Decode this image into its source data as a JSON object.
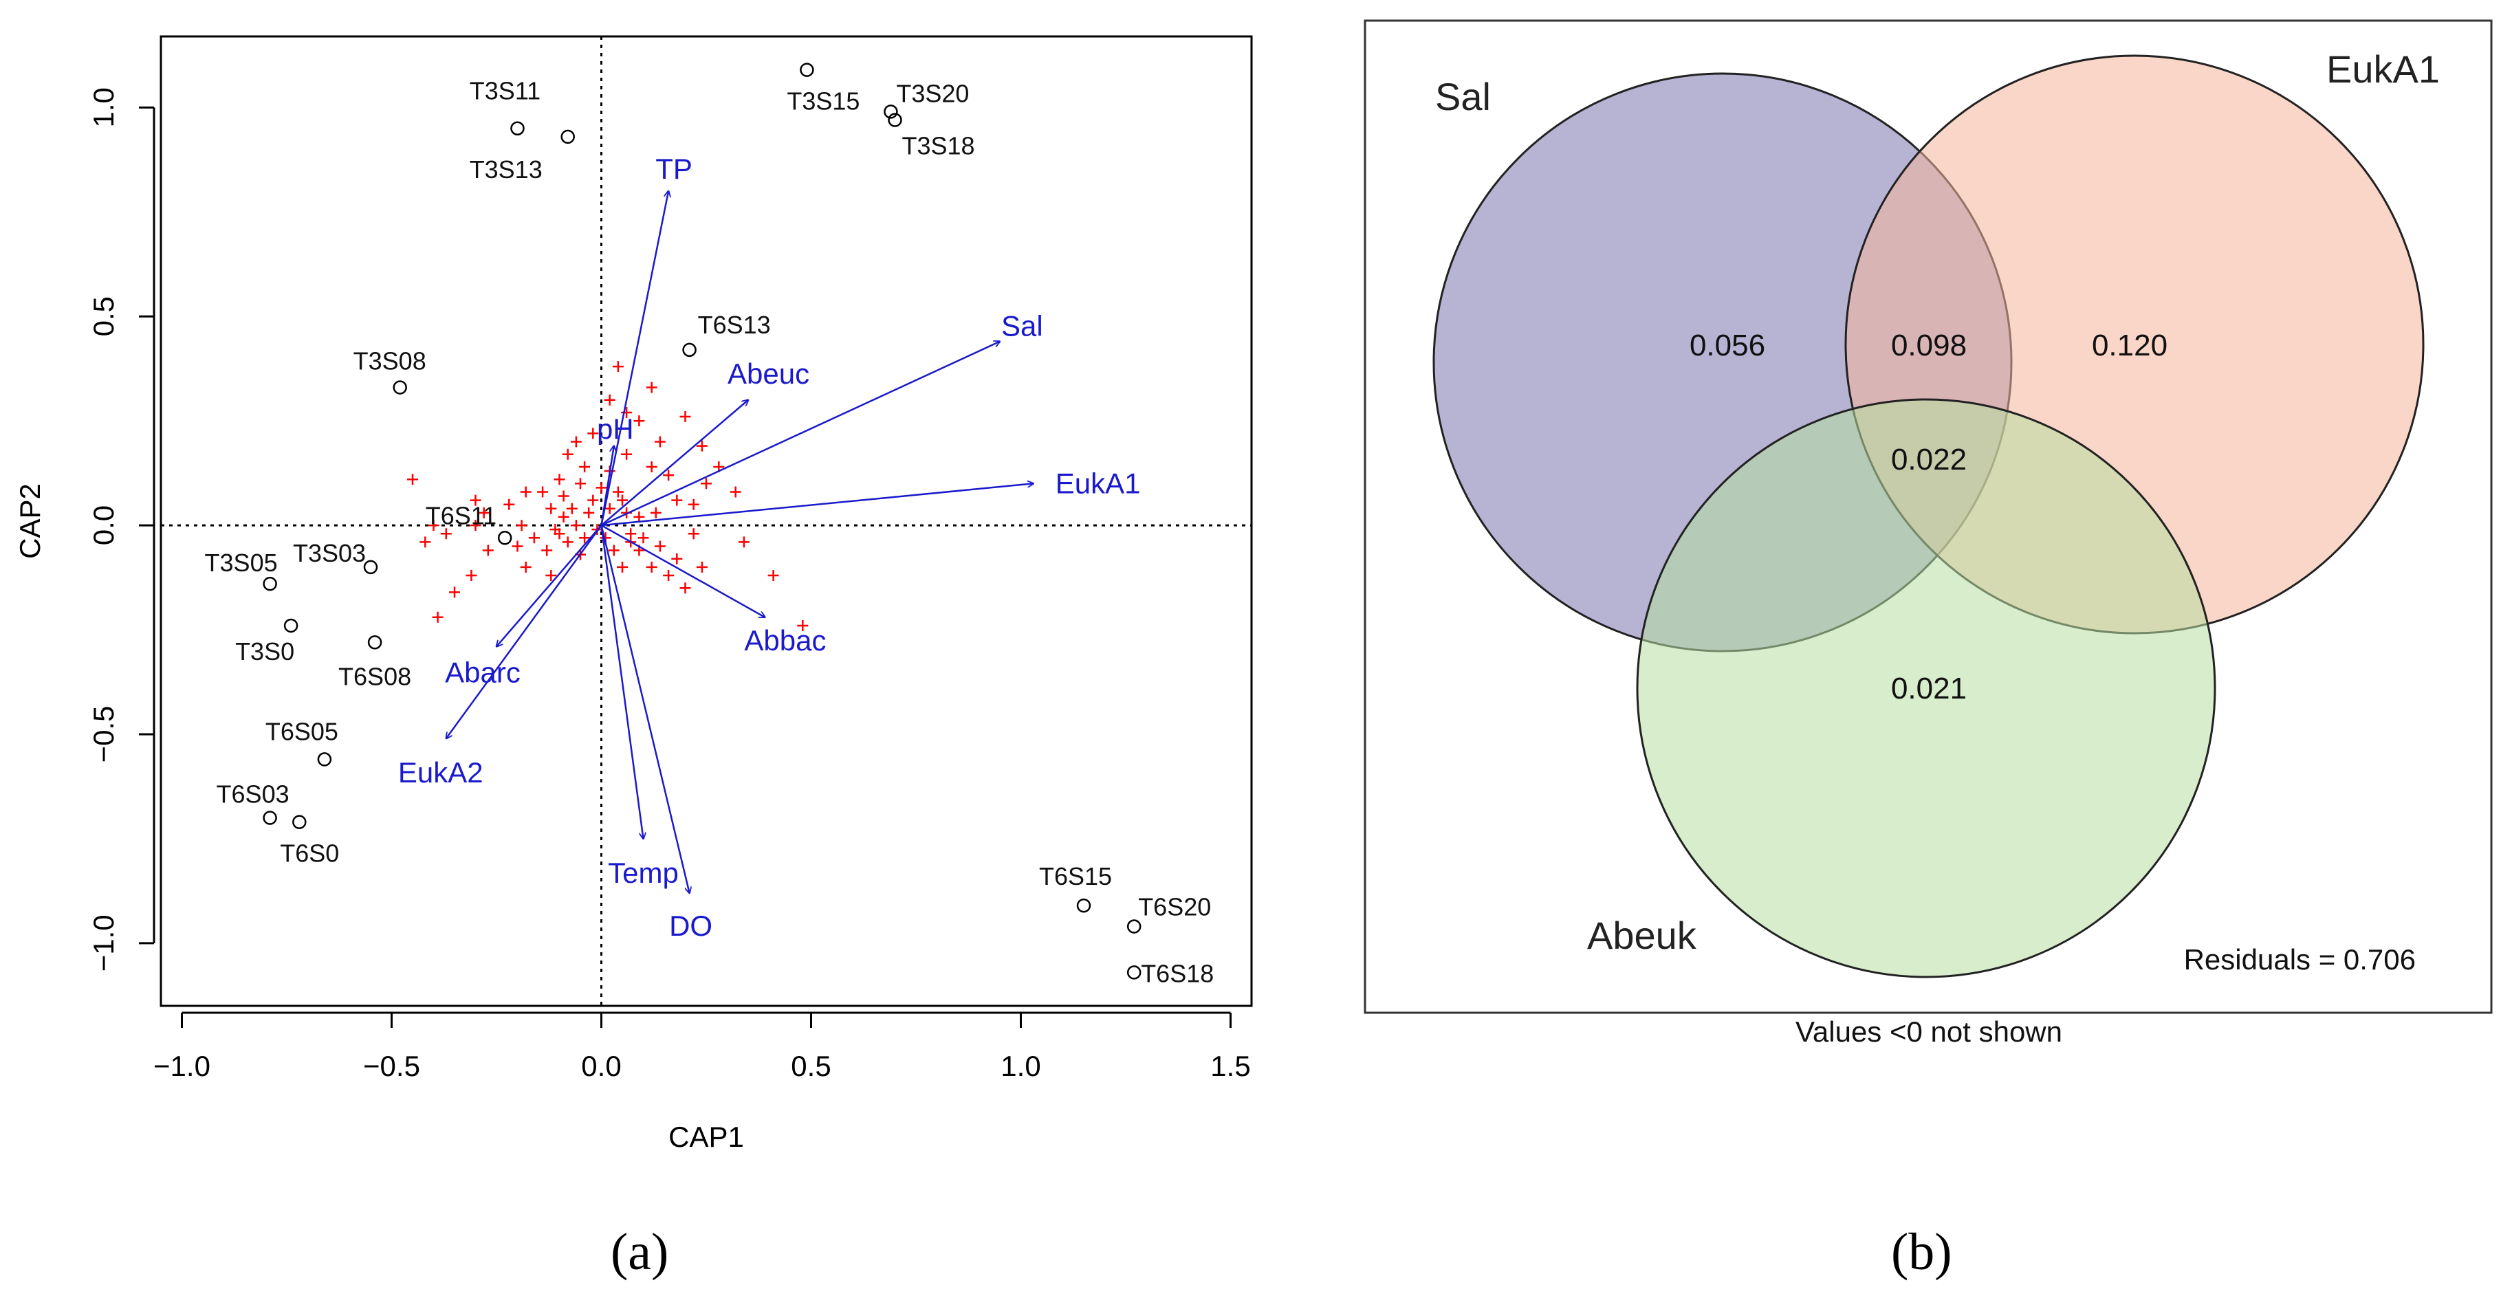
{
  "panel_a_label": "(a)",
  "panel_b_label": "(b)",
  "chart_data": [
    {
      "type": "scatter",
      "xlabel": "CAP1",
      "ylabel": "CAP2",
      "xlim": [
        -1.05,
        1.55
      ],
      "ylim": [
        -1.15,
        1.17
      ],
      "xticks": [
        -1.0,
        -0.5,
        0.0,
        0.5,
        1.0,
        1.5
      ],
      "xtick_labels": [
        "−1.0",
        "−0.5",
        "0.0",
        "0.5",
        "1.0",
        "1.5"
      ],
      "yticks": [
        -1.0,
        -0.5,
        0.0,
        0.5,
        1.0
      ],
      "ytick_labels": [
        "−1.0",
        "−0.5",
        "0.0",
        "0.5",
        "1.0"
      ],
      "reference_lines": {
        "x": 0,
        "y": 0,
        "style": "dotted"
      },
      "colors": {
        "sites": "#000000",
        "species": "#ff0000",
        "vectors": "#1a1acc"
      },
      "sites": [
        {
          "label": "T3S11",
          "x": -0.2,
          "y": 0.95
        },
        {
          "label": "T3S13",
          "x": -0.08,
          "y": 0.93
        },
        {
          "label": "T3S15",
          "x": 0.49,
          "y": 1.09
        },
        {
          "label": "T3S20",
          "x": 0.69,
          "y": 0.99
        },
        {
          "label": "T3S18",
          "x": 0.7,
          "y": 0.97
        },
        {
          "label": "T3S08",
          "x": -0.48,
          "y": 0.33
        },
        {
          "label": "T6S13",
          "x": 0.21,
          "y": 0.42
        },
        {
          "label": "T6S11",
          "x": -0.23,
          "y": -0.03
        },
        {
          "label": "T3S03",
          "x": -0.55,
          "y": -0.1
        },
        {
          "label": "T3S05",
          "x": -0.79,
          "y": -0.14
        },
        {
          "label": "T3S0",
          "x": -0.74,
          "y": -0.24
        },
        {
          "label": "T6S08",
          "x": -0.54,
          "y": -0.28
        },
        {
          "label": "T6S05",
          "x": -0.66,
          "y": -0.56
        },
        {
          "label": "T6S03",
          "x": -0.79,
          "y": -0.7
        },
        {
          "label": "T6S0",
          "x": -0.72,
          "y": -0.71
        },
        {
          "label": "T6S15",
          "x": 1.15,
          "y": -0.91
        },
        {
          "label": "T6S20",
          "x": 1.27,
          "y": -0.96
        },
        {
          "label": "T6S18",
          "x": 1.27,
          "y": -1.07
        }
      ],
      "vectors": [
        {
          "label": "TP",
          "x": 0.16,
          "y": 0.8
        },
        {
          "label": "Sal",
          "x": 0.95,
          "y": 0.44
        },
        {
          "label": "Abeuc",
          "x": 0.35,
          "y": 0.3
        },
        {
          "label": "pH",
          "x": 0.03,
          "y": 0.19
        },
        {
          "label": "EukA1",
          "x": 1.03,
          "y": 0.1
        },
        {
          "label": "Abbac",
          "x": 0.39,
          "y": -0.22
        },
        {
          "label": "Abarc",
          "x": -0.25,
          "y": -0.29
        },
        {
          "label": "EukA2",
          "x": -0.37,
          "y": -0.51
        },
        {
          "label": "Temp",
          "x": 0.1,
          "y": -0.75
        },
        {
          "label": "DO",
          "x": 0.21,
          "y": -0.88
        }
      ],
      "species": [
        [
          0.04,
          0.38
        ],
        [
          0.12,
          0.33
        ],
        [
          0.02,
          0.3
        ],
        [
          0.06,
          0.27
        ],
        [
          -0.02,
          0.22
        ],
        [
          0.09,
          0.25
        ],
        [
          0.14,
          0.2
        ],
        [
          0.2,
          0.26
        ],
        [
          0.24,
          0.19
        ],
        [
          0.28,
          0.14
        ],
        [
          0.12,
          0.14
        ],
        [
          0.06,
          0.17
        ],
        [
          0.02,
          0.13
        ],
        [
          -0.06,
          0.2
        ],
        [
          -0.08,
          0.17
        ],
        [
          -0.04,
          0.14
        ],
        [
          -0.1,
          0.11
        ],
        [
          -0.14,
          0.08
        ],
        [
          -0.05,
          0.1
        ],
        [
          0.16,
          0.12
        ],
        [
          0.18,
          0.06
        ],
        [
          0.22,
          0.05
        ],
        [
          -0.18,
          0.08
        ],
        [
          -0.09,
          0.07
        ],
        [
          0.32,
          0.08
        ],
        [
          -0.45,
          0.11
        ],
        [
          -0.3,
          0.06
        ],
        [
          -0.22,
          0.05
        ],
        [
          -0.28,
          0.03
        ],
        [
          -0.4,
          0.0
        ],
        [
          -0.3,
          0.0
        ],
        [
          -0.19,
          0.0
        ],
        [
          -0.37,
          -0.02
        ],
        [
          -0.2,
          -0.05
        ],
        [
          -0.27,
          -0.06
        ],
        [
          -0.31,
          -0.12
        ],
        [
          -0.18,
          -0.1
        ],
        [
          -0.13,
          -0.06
        ],
        [
          -0.08,
          -0.04
        ],
        [
          -0.05,
          -0.07
        ],
        [
          -0.12,
          -0.12
        ],
        [
          -0.35,
          -0.16
        ],
        [
          -0.39,
          -0.22
        ],
        [
          -0.42,
          -0.04
        ],
        [
          -0.16,
          -0.03
        ],
        [
          -0.1,
          -0.02
        ],
        [
          0.07,
          -0.02
        ],
        [
          0.1,
          -0.03
        ],
        [
          0.14,
          -0.05
        ],
        [
          0.18,
          -0.08
        ],
        [
          0.24,
          -0.1
        ],
        [
          0.12,
          -0.1
        ],
        [
          0.2,
          -0.15
        ],
        [
          0.16,
          -0.12
        ],
        [
          0.22,
          -0.02
        ],
        [
          0.34,
          -0.04
        ],
        [
          0.41,
          -0.12
        ],
        [
          0.05,
          -0.1
        ],
        [
          0.09,
          -0.06
        ],
        [
          0.03,
          -0.06
        ],
        [
          0.01,
          -0.03
        ],
        [
          0.02,
          0.04
        ],
        [
          -0.02,
          0.06
        ],
        [
          0.04,
          0.08
        ],
        [
          -0.03,
          0.03
        ],
        [
          -0.07,
          0.04
        ],
        [
          -0.01,
          -0.01
        ],
        [
          0.06,
          0.03
        ],
        [
          0.09,
          0.02
        ],
        [
          0.13,
          0.03
        ],
        [
          0.05,
          0.06
        ],
        [
          -0.04,
          -0.03
        ],
        [
          -0.06,
          0.0
        ],
        [
          -0.09,
          0.02
        ],
        [
          -0.11,
          -0.01
        ],
        [
          0.0,
          0.09
        ],
        [
          -0.12,
          0.04
        ],
        [
          0.07,
          -0.04
        ],
        [
          0.48,
          -0.24
        ],
        [
          0.25,
          0.1
        ]
      ]
    },
    {
      "type": "venn",
      "sets": [
        {
          "label": "Sal",
          "color": "#8b85b8"
        },
        {
          "label": "EukA1",
          "color": "#f5b49a"
        },
        {
          "label": "Abeuk",
          "color": "#b7dea0"
        }
      ],
      "regions": [
        {
          "sets": [
            "Sal"
          ],
          "value": "0.056"
        },
        {
          "sets": [
            "Sal",
            "EukA1"
          ],
          "value": "0.098"
        },
        {
          "sets": [
            "EukA1"
          ],
          "value": "0.120"
        },
        {
          "sets": [
            "Sal",
            "EukA1",
            "Abeuk"
          ],
          "value": "0.022"
        },
        {
          "sets": [
            "Abeuk"
          ],
          "value": "0.021"
        }
      ],
      "residuals_text": "Residuals = 0.706",
      "note": "Values <0 not shown"
    }
  ]
}
